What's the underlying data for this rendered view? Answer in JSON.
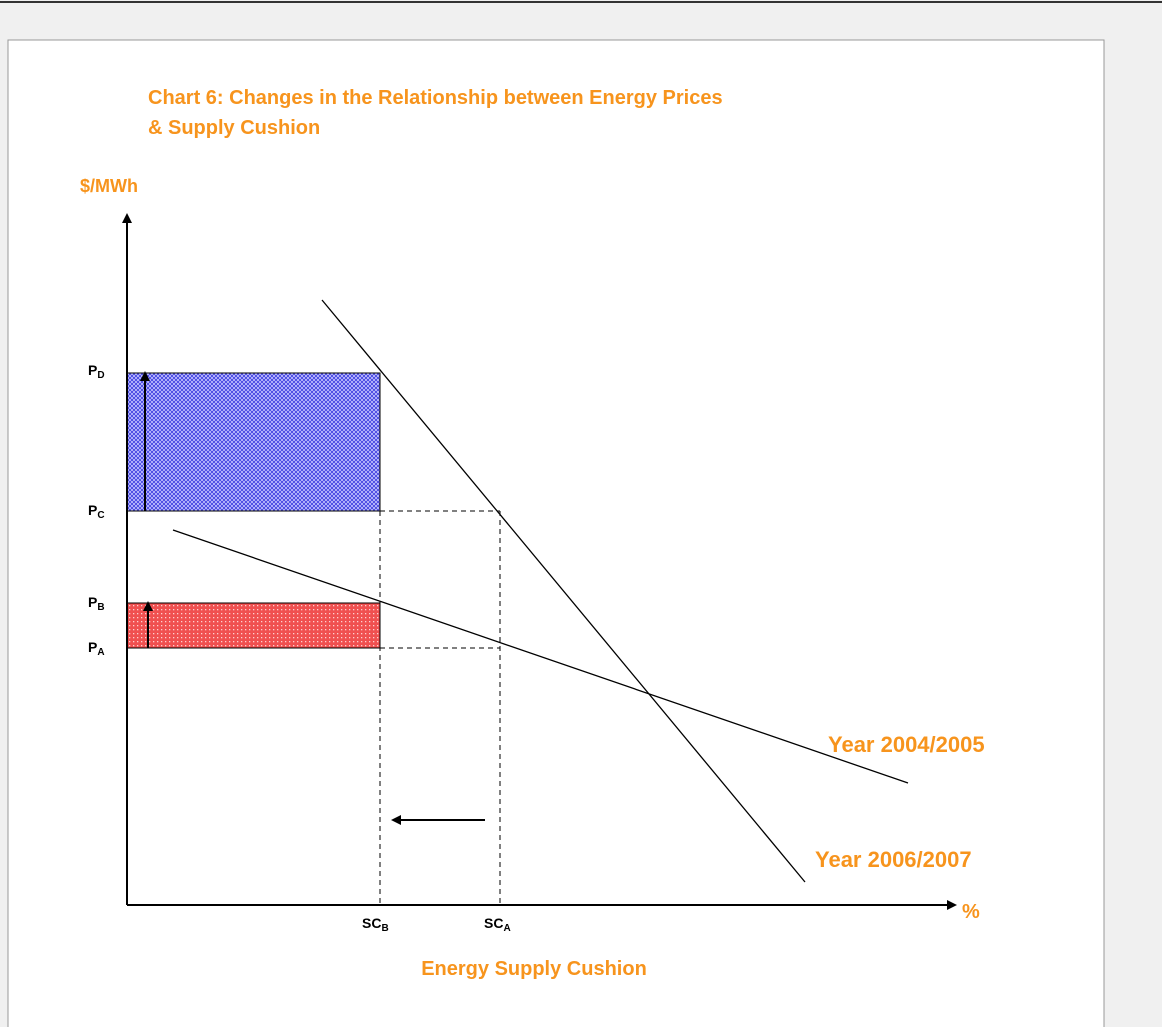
{
  "title": {
    "line1": "Chart 6: Changes in the Relationship between Energy Prices",
    "line2": "& Supply Cushion"
  },
  "y_axis_label": "$/MWh",
  "x_axis_label": "%",
  "x_axis_title": "Energy Supply Cushion",
  "price_levels": [
    {
      "main": "P",
      "sub": "D"
    },
    {
      "main": "P",
      "sub": "C"
    },
    {
      "main": "P",
      "sub": "B"
    },
    {
      "main": "P",
      "sub": "A"
    }
  ],
  "cushion_levels": [
    {
      "main": "SC",
      "sub": "B"
    },
    {
      "main": "SC",
      "sub": "A"
    }
  ],
  "curves": [
    "Year 2004/2005",
    "Year 2006/2007"
  ]
}
